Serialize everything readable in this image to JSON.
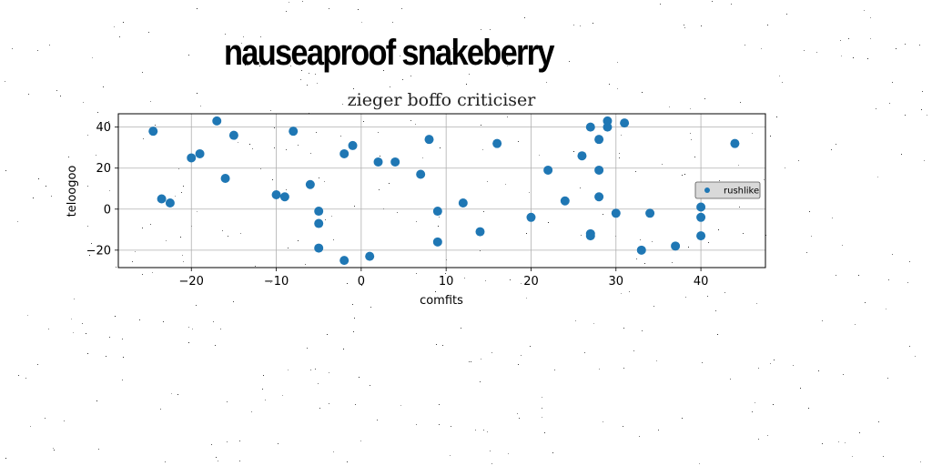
{
  "header": {
    "title": "nauseaproof snakeberry"
  },
  "colors": {
    "series": "#1f77b4",
    "grid": "#b0b0b0",
    "legend_bg": "#d9d9d9"
  },
  "chart_data": {
    "type": "scatter",
    "title": "zieger boffo criticiser",
    "xlabel": "comfits",
    "ylabel": "teloogoo",
    "xlim": [
      -28.6,
      47.6
    ],
    "ylim": [
      -28.5,
      46.5
    ],
    "xticks": [
      -20,
      -10,
      0,
      10,
      20,
      30,
      40
    ],
    "yticks": [
      -20,
      0,
      20,
      40
    ],
    "grid": true,
    "legend_position": "right",
    "series": [
      {
        "name": "rushlike",
        "points": [
          [
            -24.5,
            38
          ],
          [
            -23.5,
            5
          ],
          [
            -22.5,
            3
          ],
          [
            -20,
            25
          ],
          [
            -19,
            27
          ],
          [
            -17,
            43
          ],
          [
            -16,
            15
          ],
          [
            -15,
            36
          ],
          [
            -10,
            7
          ],
          [
            -9,
            6
          ],
          [
            -8,
            38
          ],
          [
            -6,
            12
          ],
          [
            -5,
            -1
          ],
          [
            -5,
            -7
          ],
          [
            -5,
            -19
          ],
          [
            -2,
            27
          ],
          [
            -2,
            -25
          ],
          [
            -1,
            31
          ],
          [
            1,
            -23
          ],
          [
            2,
            23
          ],
          [
            4,
            23
          ],
          [
            7,
            17
          ],
          [
            8,
            34
          ],
          [
            9,
            -1
          ],
          [
            9,
            -16
          ],
          [
            12,
            3
          ],
          [
            14,
            -11
          ],
          [
            16,
            32
          ],
          [
            20,
            -4
          ],
          [
            22,
            19
          ],
          [
            24,
            4
          ],
          [
            26,
            26
          ],
          [
            27,
            40
          ],
          [
            27,
            -12
          ],
          [
            27,
            -13
          ],
          [
            28,
            34
          ],
          [
            28,
            19
          ],
          [
            28,
            6
          ],
          [
            29,
            43
          ],
          [
            29,
            40
          ],
          [
            30,
            -2
          ],
          [
            31,
            42
          ],
          [
            33,
            -20
          ],
          [
            34,
            -2
          ],
          [
            37,
            -18
          ],
          [
            40,
            1
          ],
          [
            40,
            -4
          ],
          [
            40,
            -13
          ],
          [
            44,
            32
          ]
        ]
      }
    ]
  }
}
